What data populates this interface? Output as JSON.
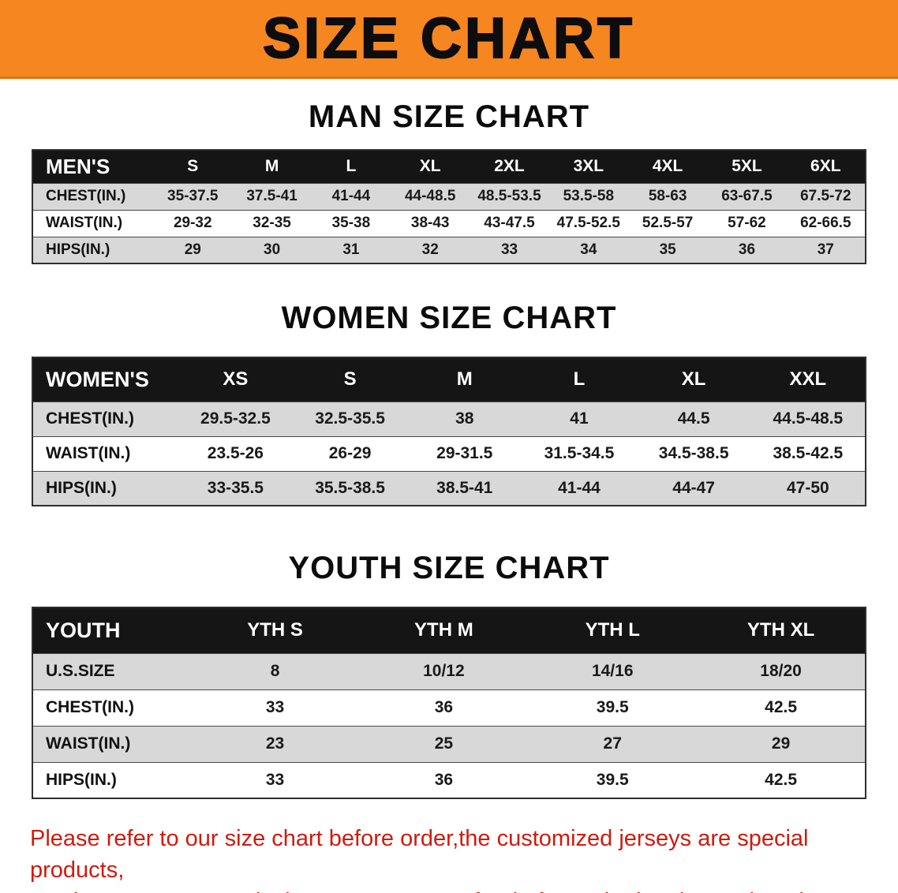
{
  "banner": {
    "title": "SIZE CHART",
    "bg_color": "#F6861F",
    "text_color": "#0D0D0D"
  },
  "sections": [
    {
      "title": "MAN SIZE CHART",
      "table": {
        "header": [
          "MEN'S",
          "S",
          "M",
          "L",
          "XL",
          "2XL",
          "3XL",
          "4XL",
          "5XL",
          "6XL"
        ],
        "rows": [
          {
            "label": "CHEST(IN.)",
            "values": [
              "35-37.5",
              "37.5-41",
              "41-44",
              "44-48.5",
              "48.5-53.5",
              "53.5-58",
              "58-63",
              "63-67.5",
              "67.5-72"
            ]
          },
          {
            "label": "WAIST(IN.)",
            "values": [
              "29-32",
              "32-35",
              "35-38",
              "38-43",
              "43-47.5",
              "47.5-52.5",
              "52.5-57",
              "57-62",
              "62-66.5"
            ]
          },
          {
            "label": "HIPS(IN.)",
            "values": [
              "29",
              "30",
              "31",
              "32",
              "33",
              "34",
              "35",
              "36",
              "37"
            ]
          }
        ]
      }
    },
    {
      "title": "WOMEN SIZE CHART",
      "table": {
        "header": [
          "WOMEN'S",
          "XS",
          "S",
          "M",
          "L",
          "XL",
          "XXL"
        ],
        "rows": [
          {
            "label": "CHEST(IN.)",
            "values": [
              "29.5-32.5",
              "32.5-35.5",
              "38",
              "41",
              "44.5",
              "44.5-48.5"
            ]
          },
          {
            "label": "WAIST(IN.)",
            "values": [
              "23.5-26",
              "26-29",
              "29-31.5",
              "31.5-34.5",
              "34.5-38.5",
              "38.5-42.5"
            ]
          },
          {
            "label": "HIPS(IN.)",
            "values": [
              "33-35.5",
              "35.5-38.5",
              "38.5-41",
              "41-44",
              "44-47",
              "47-50"
            ]
          }
        ]
      }
    },
    {
      "title": "YOUTH SIZE CHART",
      "table": {
        "header": [
          "YOUTH",
          "YTH S",
          "YTH M",
          "YTH L",
          "YTH XL"
        ],
        "rows": [
          {
            "label": "U.S.SIZE",
            "values": [
              "8",
              "10/12",
              "14/16",
              "18/20"
            ]
          },
          {
            "label": "CHEST(IN.)",
            "values": [
              "33",
              "36",
              "39.5",
              "42.5"
            ]
          },
          {
            "label": "WAIST(IN.)",
            "values": [
              "23",
              "25",
              "27",
              "29"
            ]
          },
          {
            "label": "HIPS(IN.)",
            "values": [
              "33",
              "36",
              "39.5",
              "42.5"
            ]
          }
        ]
      }
    }
  ],
  "footer": {
    "line1": "Please refer to our size chart before order,the customized jerseys are special products,",
    "line2": "we don't accept cancel, change, teturn or refund after order has been placed!",
    "text_color": "#CE1B0E"
  }
}
